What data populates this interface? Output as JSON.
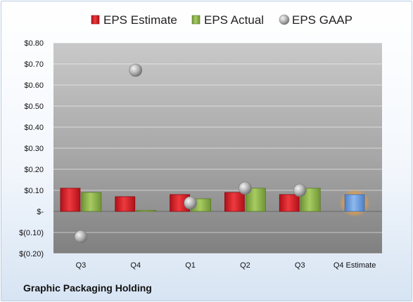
{
  "chart_data": {
    "type": "bar",
    "title": "",
    "xlabel": "",
    "ylabel": "",
    "categories": [
      "Q3",
      "Q4",
      "Q1",
      "Q2",
      "Q3",
      "Q4 Estimate"
    ],
    "y_ticks": [
      "$0.80",
      "$0.70",
      "$0.60",
      "$0.50",
      "$0.40",
      "$0.30",
      "$0.20",
      "$0.10",
      "$-",
      "$(0.10)",
      "$(0.20)"
    ],
    "ylim": [
      -0.2,
      0.8
    ],
    "grid": true,
    "legend_position": "top",
    "series": [
      {
        "name": "EPS Estimate",
        "type": "bar",
        "color": "#d9242c",
        "values": [
          0.11,
          0.07,
          0.08,
          0.09,
          0.08,
          null
        ]
      },
      {
        "name": "EPS Actual",
        "type": "bar",
        "color": "#8cb24a",
        "values": [
          0.09,
          0.005,
          0.06,
          0.11,
          0.11,
          null
        ]
      },
      {
        "name": "EPS GAAP",
        "type": "scatter",
        "color": "#b0b0b0",
        "values": [
          -0.12,
          0.67,
          0.04,
          0.11,
          0.1,
          null
        ]
      }
    ],
    "estimate_bar": {
      "category": "Q4 Estimate",
      "value": 0.08,
      "color": "#6d9fe0",
      "glow": "#f0a040"
    }
  },
  "footer": {
    "company": "Graphic Packaging Holding"
  }
}
